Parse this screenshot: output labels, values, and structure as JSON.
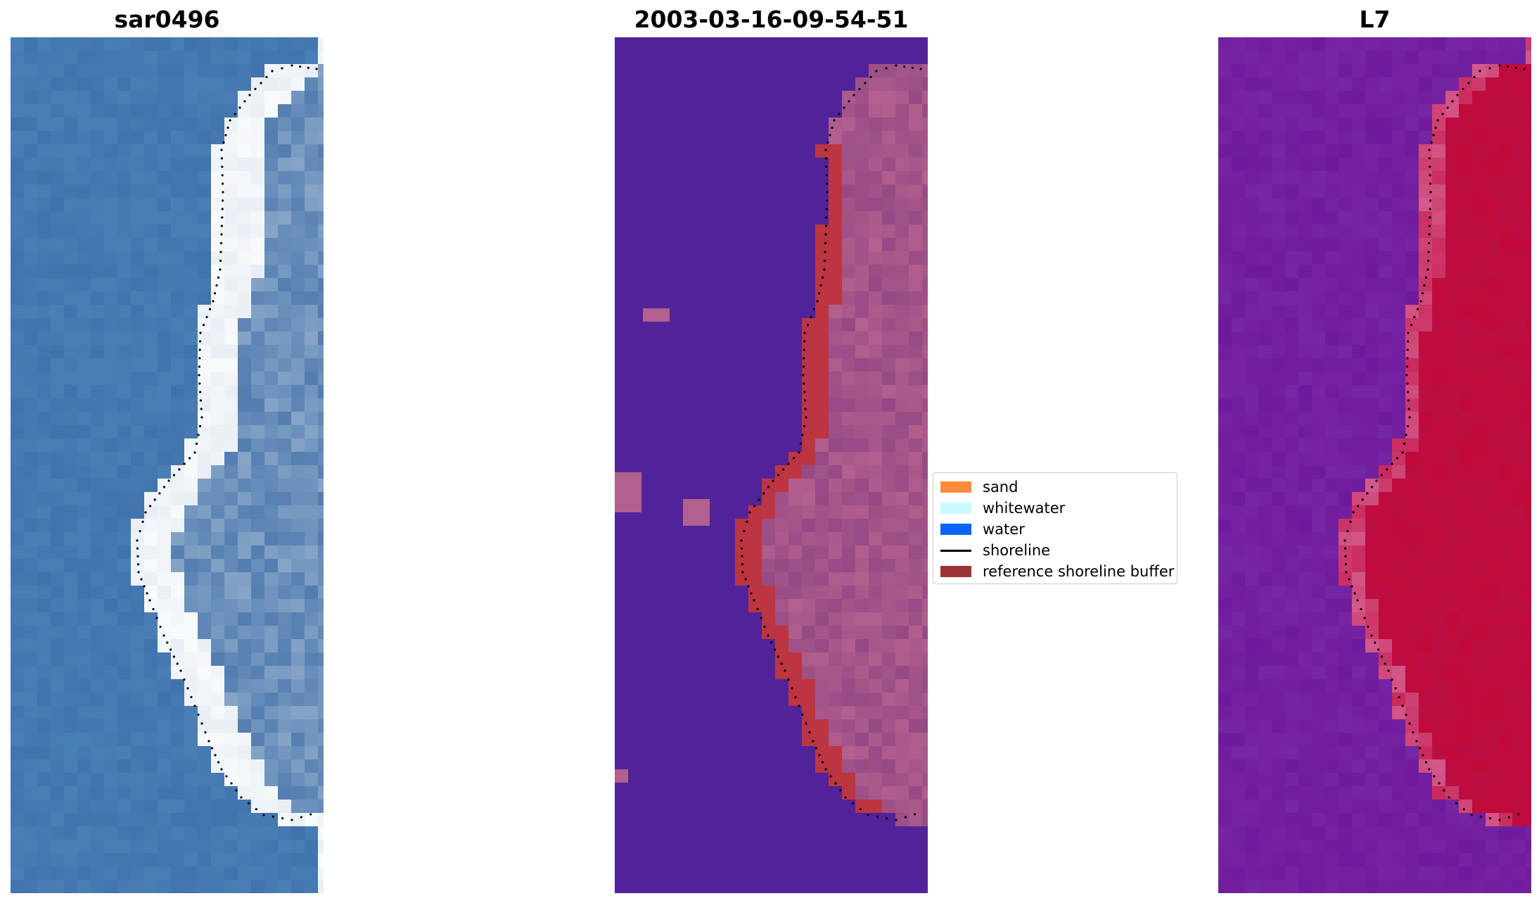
{
  "panels": [
    {
      "title": "sar0496",
      "type": "rgb"
    },
    {
      "title": "2003-03-16-09-54-51",
      "type": "classified"
    },
    {
      "title": "L7",
      "type": "index"
    }
  ],
  "legend": {
    "items": [
      {
        "label": "sand",
        "color": "#ff8c3c",
        "kind": "patch"
      },
      {
        "label": "whitewater",
        "color": "#c8faff",
        "kind": "patch"
      },
      {
        "label": "water",
        "color": "#0a64ff",
        "kind": "patch"
      },
      {
        "label": "shoreline",
        "color": "#000000",
        "kind": "line"
      },
      {
        "label": "reference shoreline buffer",
        "color": "#9b3336",
        "kind": "patch"
      }
    ]
  },
  "colors": {
    "rgb_water": "#4a7fb5",
    "rgb_water_dark": "#3a6aa6",
    "rgb_sand": "#e8eef4",
    "rgb_sand_bright": "#f8fbfd",
    "class_background": "#52229a",
    "class_land": "#b2608e",
    "class_land_dark": "#8a3f80",
    "class_buffer": "#bc3540",
    "index_background": "#6e1a9c",
    "index_land": "#c20a3a",
    "index_pink": "#d45a8c",
    "shoreline": "#000000"
  }
}
